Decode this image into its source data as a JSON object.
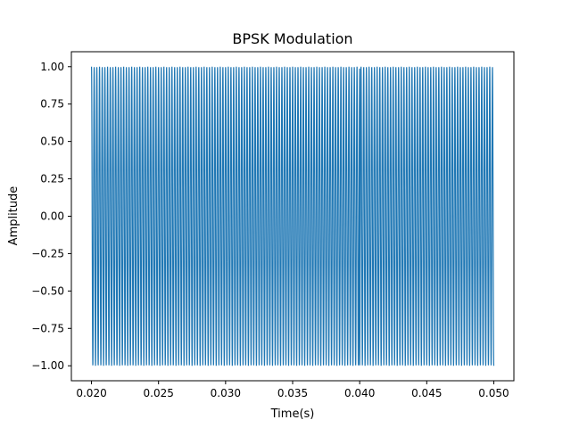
{
  "chart_data": {
    "type": "line",
    "title": "BPSK Modulation",
    "xlabel": "Time(s)",
    "ylabel": "Amplitude",
    "xlim": [
      0.0185,
      0.0515
    ],
    "ylim": [
      -1.1,
      1.1
    ],
    "x_ticks": [
      {
        "value": 0.02,
        "label": "0.020"
      },
      {
        "value": 0.025,
        "label": "0.025"
      },
      {
        "value": 0.03,
        "label": "0.030"
      },
      {
        "value": 0.035,
        "label": "0.035"
      },
      {
        "value": 0.04,
        "label": "0.040"
      },
      {
        "value": 0.045,
        "label": "0.045"
      },
      {
        "value": 0.05,
        "label": "0.050"
      }
    ],
    "y_ticks": [
      {
        "value": -1.0,
        "label": "−1.00"
      },
      {
        "value": -0.75,
        "label": "−0.75"
      },
      {
        "value": -0.5,
        "label": "−0.50"
      },
      {
        "value": -0.25,
        "label": "−0.25"
      },
      {
        "value": 0.0,
        "label": "0.00"
      },
      {
        "value": 0.25,
        "label": "0.25"
      },
      {
        "value": 0.5,
        "label": "0.50"
      },
      {
        "value": 0.75,
        "label": "0.75"
      },
      {
        "value": 1.0,
        "label": "1.00"
      }
    ],
    "grid": false,
    "series": [
      {
        "color": "#1f77b4",
        "x_start": 0.02,
        "x_end": 0.05,
        "amplitude": 1.0,
        "carrier_frequency_hz": 5000,
        "phase_flip_times": [
          0.04
        ],
        "samples": 4000
      }
    ]
  }
}
